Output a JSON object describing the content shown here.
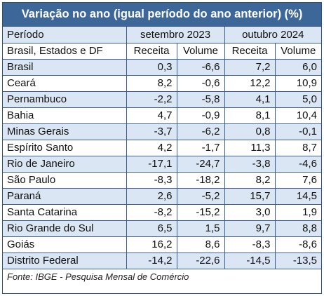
{
  "title": "Variação no ano (igual período do ano anterior) (%)",
  "header": {
    "period_label": "Período",
    "period_1": "setembro 2023",
    "period_2": "outubro 2024",
    "region_label": "Brasil, Estados e DF",
    "col_receita_1": "Receita",
    "col_volume_1": "Volume",
    "col_receita_2": "Receita",
    "col_volume_2": "Volume"
  },
  "rows": [
    {
      "name": "Brasil",
      "values": [
        "0,3",
        "-6,6",
        "7,2",
        "6,0"
      ]
    },
    {
      "name": "Ceará",
      "values": [
        "8,2",
        "-0,6",
        "12,2",
        "10,9"
      ]
    },
    {
      "name": "Pernambuco",
      "values": [
        "-2,2",
        "-5,8",
        "4,1",
        "5,0"
      ]
    },
    {
      "name": "Bahia",
      "values": [
        "4,7",
        "-0,9",
        "8,1",
        "10,4"
      ]
    },
    {
      "name": "Minas Gerais",
      "values": [
        "-3,7",
        "-6,2",
        "0,8",
        "-0,1"
      ]
    },
    {
      "name": "Espírito Santo",
      "values": [
        "4,2",
        "-1,7",
        "11,3",
        "8,7"
      ]
    },
    {
      "name": "Rio de Janeiro",
      "values": [
        "-17,1",
        "-24,7",
        "-3,8",
        "-4,6"
      ]
    },
    {
      "name": "São Paulo",
      "values": [
        "-8,3",
        "-18,2",
        "8,2",
        "7,6"
      ]
    },
    {
      "name": "Paraná",
      "values": [
        "2,6",
        "-5,2",
        "15,7",
        "14,5"
      ]
    },
    {
      "name": "Santa Catarina",
      "values": [
        "-8,2",
        "-15,2",
        "3,0",
        "1,9"
      ]
    },
    {
      "name": "Rio Grande do Sul",
      "values": [
        "6,5",
        "1,5",
        "9,7",
        "8,8"
      ]
    },
    {
      "name": "Goiás",
      "values": [
        "16,2",
        "8,6",
        "-8,3",
        "-8,6"
      ]
    },
    {
      "name": "Distrito Federal",
      "values": [
        "-14,2",
        "-22,6",
        "-14,5",
        "-13,5"
      ]
    }
  ],
  "footer": "Fonte: IBGE - Pesquisa Mensal de Comércio",
  "colors": {
    "title_bg": "#3d6798",
    "row_blue": "#dbe6f4",
    "border": "#3d5f8d"
  }
}
